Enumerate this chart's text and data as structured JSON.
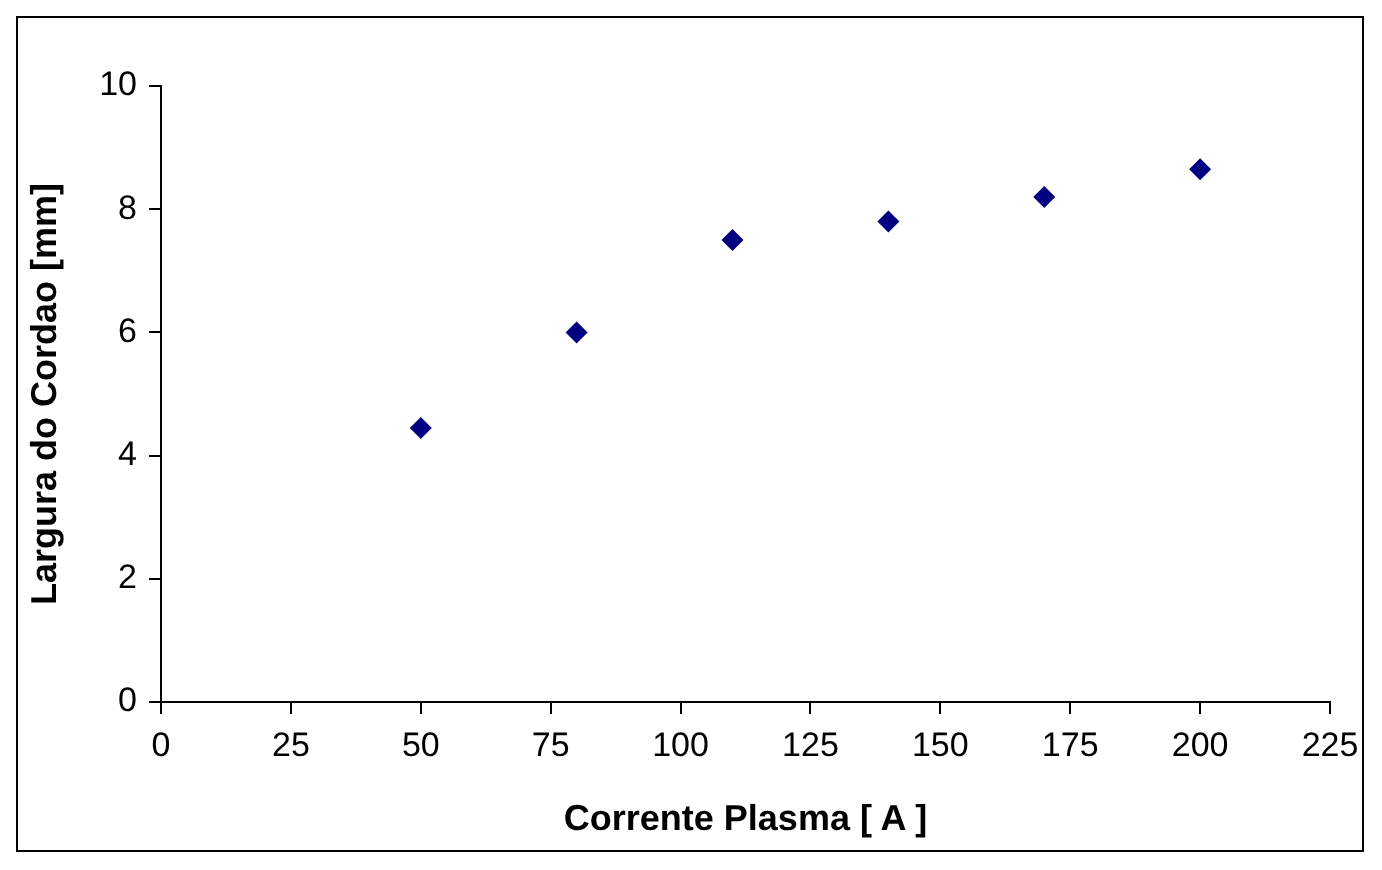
{
  "chart_data": {
    "type": "scatter",
    "xlabel": "Corrente Plasma [ A ]",
    "ylabel": "Largura do Cordao [mm]",
    "x": [
      50,
      80,
      110,
      140,
      170,
      200
    ],
    "series": [
      {
        "color": "#000080",
        "values": [
          4.45,
          6.0,
          7.5,
          7.8,
          8.2,
          8.65
        ]
      }
    ],
    "xlim": [
      0,
      225
    ],
    "xticks": [
      0,
      25,
      50,
      75,
      100,
      125,
      150,
      175,
      200,
      225
    ],
    "ylim": [
      0,
      10
    ],
    "yticks": [
      0,
      2,
      4,
      6,
      8,
      10
    ],
    "grid": false,
    "legend": false,
    "marker": "diamond"
  }
}
